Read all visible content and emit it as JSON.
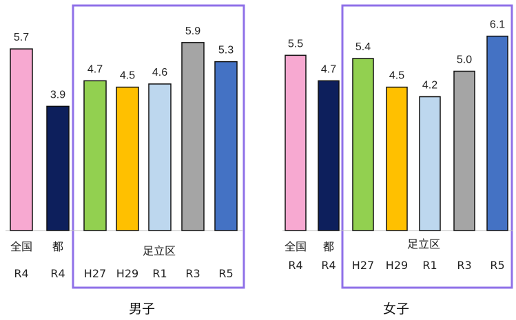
{
  "chart_data": [
    {
      "type": "bar",
      "title": "男子",
      "group_label": "足立区",
      "ylim": [
        0,
        6.5
      ],
      "colors": [
        "#f7a9d1",
        "#0d1f5c",
        "#92d050",
        "#ffc000",
        "#bdd7ee",
        "#a5a5a5",
        "#4472c4"
      ],
      "categories": [
        {
          "line1": "全国",
          "line2": "R4"
        },
        {
          "line1": "都",
          "line2": "R4"
        },
        {
          "line1": "",
          "line2": "H27"
        },
        {
          "line1": "",
          "line2": "H29"
        },
        {
          "line1": "",
          "line2": "R1"
        },
        {
          "line1": "",
          "line2": "R3"
        },
        {
          "line1": "",
          "line2": "R5"
        }
      ],
      "values": [
        5.7,
        3.9,
        4.7,
        4.5,
        4.6,
        5.9,
        5.3
      ],
      "labels": [
        "5.7",
        "3.9",
        "4.7",
        "4.5",
        "4.6",
        "5.9",
        "5.3"
      ]
    },
    {
      "type": "bar",
      "title": "女子",
      "group_label": "足立区",
      "ylim": [
        0,
        6.5
      ],
      "colors": [
        "#f7a9d1",
        "#0d1f5c",
        "#92d050",
        "#ffc000",
        "#bdd7ee",
        "#a5a5a5",
        "#4472c4"
      ],
      "categories": [
        {
          "line1": "全国",
          "line2": "R4"
        },
        {
          "line1": "都",
          "line2": "R4"
        },
        {
          "line1": "",
          "line2": "H27"
        },
        {
          "line1": "",
          "line2": "H29"
        },
        {
          "line1": "",
          "line2": "R1"
        },
        {
          "line1": "",
          "line2": "R3"
        },
        {
          "line1": "",
          "line2": "R5"
        }
      ],
      "values": [
        5.5,
        4.7,
        5.4,
        4.5,
        4.2,
        5.0,
        6.1
      ],
      "labels": [
        "5.5",
        "4.7",
        "5.4",
        "4.5",
        "4.2",
        "5.0",
        "6.1"
      ]
    }
  ],
  "colors": {
    "group_box": "#8f70e8",
    "baseline": "#bfbfbf"
  }
}
